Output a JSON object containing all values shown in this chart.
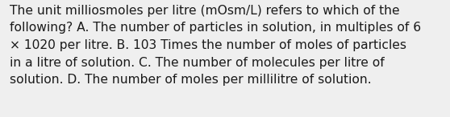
{
  "lines": [
    "The unit milliosmoles per litre (mOsm/L) refers to which of the",
    "following? A. The number of particles in solution, in multiples of 6",
    "× 1020 per litre. B. 103 Times the number of moles of particles",
    "in a litre of solution. C. The number of molecules per litre of",
    "solution. D. The number of moles per millilitre of solution."
  ],
  "bg_color": "#efefef",
  "text_color": "#1a1a1a",
  "font_size": 11.2,
  "fig_width": 5.58,
  "fig_height": 1.46,
  "dpi": 100,
  "linespacing": 1.55
}
